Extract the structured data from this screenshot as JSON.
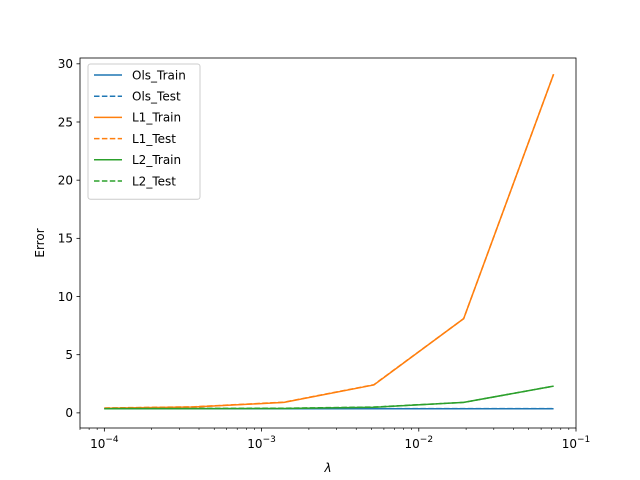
{
  "chart_data": {
    "type": "line",
    "xscale": "log",
    "xlim": [
      7e-05,
      0.1
    ],
    "ylim": [
      -1.3,
      30.5
    ],
    "xlabel": "λ",
    "ylabel": "Error",
    "grid": false,
    "legend_position": "upper-left",
    "x_ticks": [
      {
        "value": 0.0001,
        "base": "10",
        "exp": "−4"
      },
      {
        "value": 0.001,
        "base": "10",
        "exp": "−3"
      },
      {
        "value": 0.01,
        "base": "10",
        "exp": "−2"
      },
      {
        "value": 0.1,
        "base": "10",
        "exp": "−1"
      }
    ],
    "y_ticks": [
      {
        "value": 0,
        "label": "0"
      },
      {
        "value": 5,
        "label": "5"
      },
      {
        "value": 10,
        "label": "10"
      },
      {
        "value": 15,
        "label": "15"
      },
      {
        "value": 20,
        "label": "20"
      },
      {
        "value": 25,
        "label": "25"
      },
      {
        "value": 30,
        "label": "30"
      }
    ],
    "x": [
      0.0001,
      0.00037,
      0.00139,
      0.00518,
      0.0193,
      0.072
    ],
    "series": [
      {
        "name": "Ols_Train",
        "color": "#1f77b4",
        "dash": "solid",
        "values": [
          0.35,
          0.35,
          0.35,
          0.35,
          0.35,
          0.35
        ]
      },
      {
        "name": "Ols_Test",
        "color": "#1f77b4",
        "dash": "dashed",
        "values": [
          0.37,
          0.37,
          0.37,
          0.37,
          0.37,
          0.37
        ]
      },
      {
        "name": "L1_Train",
        "color": "#ff7f0e",
        "dash": "solid",
        "values": [
          0.4,
          0.5,
          0.9,
          2.4,
          8.1,
          29.1
        ]
      },
      {
        "name": "L1_Test",
        "color": "#ff7f0e",
        "dash": "dashed",
        "values": [
          0.42,
          0.52,
          0.92,
          2.42,
          8.1,
          29.1
        ]
      },
      {
        "name": "L2_Train",
        "color": "#2ca02c",
        "dash": "solid",
        "values": [
          0.36,
          0.37,
          0.38,
          0.48,
          0.9,
          2.3
        ]
      },
      {
        "name": "L2_Test",
        "color": "#2ca02c",
        "dash": "dashed",
        "values": [
          0.37,
          0.38,
          0.4,
          0.5,
          0.9,
          2.3
        ]
      }
    ]
  }
}
